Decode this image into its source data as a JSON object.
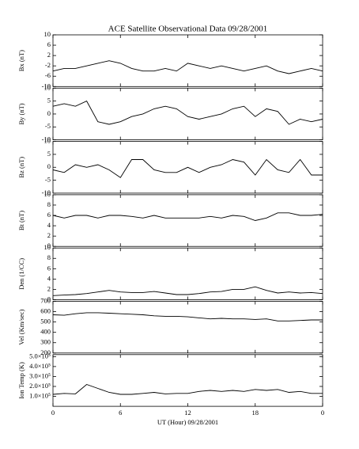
{
  "chart_data": [
    {
      "type": "line",
      "title": "ACE Satellite Observational Data   09/28/2001",
      "ylabel": "Bx (nT)",
      "color": "#000000",
      "x": [
        0,
        1,
        2,
        3,
        4,
        5,
        6,
        7,
        8,
        9,
        10,
        11,
        12,
        13,
        14,
        15,
        16,
        17,
        18,
        19,
        20,
        21,
        22,
        23,
        24
      ],
      "values": [
        -4,
        -3,
        -3,
        -2,
        -1,
        0,
        -1,
        -3,
        -4,
        -4,
        -3,
        -4,
        -1,
        -2,
        -3,
        -2,
        -3,
        -4,
        -3,
        -2,
        -4,
        -5,
        -4,
        -3,
        -4
      ],
      "xlim": [
        0,
        24
      ],
      "xticks": [
        0,
        6,
        12,
        18,
        24
      ],
      "ylim": [
        -10,
        10
      ],
      "yticks": [
        -10,
        -6,
        -2,
        2,
        6,
        10
      ]
    },
    {
      "type": "line",
      "ylabel": "By (nT)",
      "color": "#000000",
      "x": [
        0,
        1,
        2,
        3,
        4,
        5,
        6,
        7,
        8,
        9,
        10,
        11,
        12,
        13,
        14,
        15,
        16,
        17,
        18,
        19,
        20,
        21,
        22,
        23,
        24
      ],
      "values": [
        3,
        4,
        3,
        5,
        -3,
        -4,
        -3,
        -1,
        0,
        2,
        3,
        2,
        -1,
        -2,
        -1,
        0,
        2,
        3,
        -1,
        2,
        1,
        -4,
        -2,
        -3,
        -2
      ],
      "xlim": [
        0,
        24
      ],
      "xticks": [
        0,
        6,
        12,
        18,
        24
      ],
      "ylim": [
        -10,
        10
      ],
      "yticks": [
        -10,
        -5,
        0,
        5,
        10
      ]
    },
    {
      "type": "line",
      "ylabel": "Bz (nT)",
      "color": "#000000",
      "x": [
        0,
        1,
        2,
        3,
        4,
        5,
        6,
        7,
        8,
        9,
        10,
        11,
        12,
        13,
        14,
        15,
        16,
        17,
        18,
        19,
        20,
        21,
        22,
        23,
        24
      ],
      "values": [
        -1,
        -2,
        1,
        0,
        1,
        -1,
        -4,
        3,
        3,
        -1,
        -2,
        -2,
        0,
        -2,
        0,
        1,
        3,
        2,
        -3,
        3,
        -1,
        -2,
        3,
        -3,
        -3
      ],
      "xlim": [
        0,
        24
      ],
      "xticks": [
        0,
        6,
        12,
        18,
        24
      ],
      "ylim": [
        -10,
        10
      ],
      "yticks": [
        -10,
        -5,
        0,
        5,
        10
      ]
    },
    {
      "type": "line",
      "ylabel": "Bt (nT)",
      "color": "#000000",
      "x": [
        0,
        1,
        2,
        3,
        4,
        5,
        6,
        7,
        8,
        9,
        10,
        11,
        12,
        13,
        14,
        15,
        16,
        17,
        18,
        19,
        20,
        21,
        22,
        23,
        24
      ],
      "values": [
        6,
        5.5,
        6,
        6,
        5.5,
        6,
        6,
        5.8,
        5.5,
        6,
        5.5,
        5.5,
        5.5,
        5.5,
        5.8,
        5.5,
        6,
        5.8,
        5,
        5.5,
        6.5,
        6.5,
        6,
        6,
        6.2
      ],
      "xlim": [
        0,
        24
      ],
      "xticks": [
        0,
        6,
        12,
        18,
        24
      ],
      "ylim": [
        0,
        10
      ],
      "yticks": [
        0,
        2,
        4,
        6,
        8,
        10
      ]
    },
    {
      "type": "line",
      "ylabel": "Den (1/CC)",
      "color": "#000000",
      "x": [
        0,
        1,
        2,
        3,
        4,
        5,
        6,
        7,
        8,
        9,
        10,
        11,
        12,
        13,
        14,
        15,
        16,
        17,
        18,
        19,
        20,
        21,
        22,
        23,
        24
      ],
      "values": [
        0.8,
        0.9,
        1,
        1.2,
        1.5,
        1.8,
        1.5,
        1.4,
        1.4,
        1.6,
        1.3,
        1,
        1,
        1.2,
        1.5,
        1.6,
        2,
        2,
        2.5,
        1.8,
        1.3,
        1.5,
        1.3,
        1.4,
        1.2
      ],
      "xlim": [
        0,
        24
      ],
      "xticks": [
        0,
        6,
        12,
        18,
        24
      ],
      "ylim": [
        0,
        10
      ],
      "yticks": [
        0,
        2,
        4,
        6,
        8,
        10
      ]
    },
    {
      "type": "line",
      "ylabel": "Vel (Km/sec)",
      "color": "#000000",
      "x": [
        0,
        1,
        2,
        3,
        4,
        5,
        6,
        7,
        8,
        9,
        10,
        11,
        12,
        13,
        14,
        15,
        16,
        17,
        18,
        19,
        20,
        21,
        22,
        23,
        24
      ],
      "values": [
        570,
        565,
        580,
        590,
        590,
        585,
        580,
        575,
        570,
        560,
        555,
        555,
        550,
        540,
        530,
        535,
        530,
        530,
        525,
        530,
        510,
        510,
        515,
        520,
        520
      ],
      "xlim": [
        0,
        24
      ],
      "xticks": [
        0,
        6,
        12,
        18,
        24
      ],
      "ylim": [
        200,
        700
      ],
      "yticks": [
        200,
        300,
        400,
        500,
        600,
        700
      ]
    },
    {
      "type": "line",
      "ylabel": "Ion Temp (K)",
      "xlabel": "UT (Hour)  09/28/2001",
      "color": "#000000",
      "x": [
        0,
        1,
        2,
        3,
        4,
        5,
        6,
        7,
        8,
        9,
        10,
        11,
        12,
        13,
        14,
        15,
        16,
        17,
        18,
        19,
        20,
        21,
        22,
        23,
        24
      ],
      "values": [
        120000,
        130000,
        125000,
        220000,
        180000,
        140000,
        120000,
        120000,
        130000,
        140000,
        125000,
        130000,
        130000,
        150000,
        160000,
        150000,
        160000,
        150000,
        170000,
        160000,
        170000,
        140000,
        150000,
        130000,
        130000
      ],
      "xlim": [
        0,
        24
      ],
      "xticks": [
        0,
        6,
        12,
        18,
        {
          "value": 24,
          "label": "0"
        }
      ],
      "ylim": [
        0,
        520000
      ],
      "yticks": [
        {
          "value": 100000,
          "label": "1.0×10⁵"
        },
        {
          "value": 200000,
          "label": "2.0×10⁵"
        },
        {
          "value": 300000,
          "label": "3.0×10⁵"
        },
        {
          "value": 400000,
          "label": "4.0×10⁵"
        },
        {
          "value": 500000,
          "label": "5.0×10⁵"
        }
      ]
    }
  ]
}
